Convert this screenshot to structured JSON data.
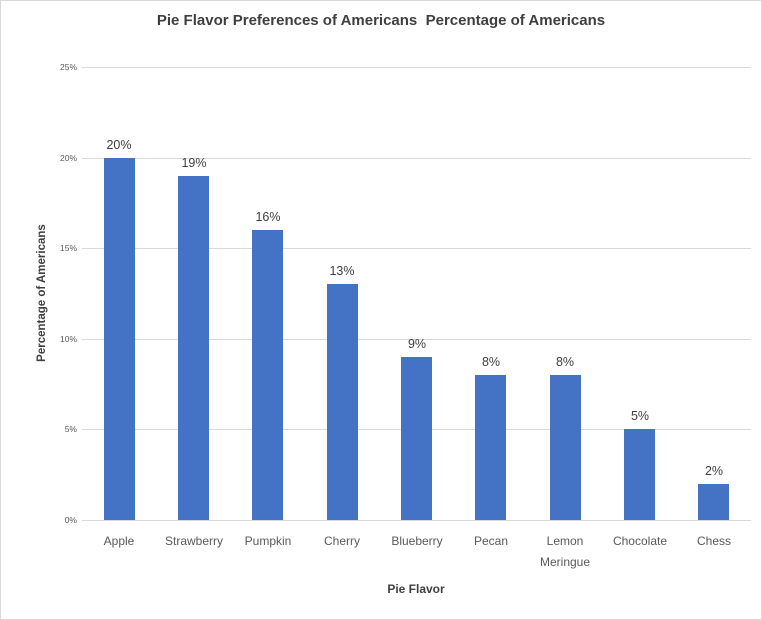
{
  "chart_data": {
    "type": "bar",
    "title": "Pie Flavor Preferences of Americans  Percentage of Americans",
    "xlabel": "Pie Flavor",
    "ylabel": "Percentage of Americans",
    "categories": [
      "Apple",
      "Strawberry",
      "Pumpkin",
      "Cherry",
      "Blueberry",
      "Pecan",
      "Lemon Meringue",
      "Chocolate",
      "Chess"
    ],
    "values": [
      20,
      19,
      16,
      13,
      9,
      8,
      8,
      5,
      2
    ],
    "data_labels": [
      "20%",
      "19%",
      "16%",
      "13%",
      "9%",
      "8%",
      "8%",
      "5%",
      "2%"
    ],
    "yticks": [
      "0%",
      "5%",
      "10%",
      "15%",
      "20%",
      "25%"
    ],
    "ylim": [
      0,
      25
    ],
    "grid": true,
    "gridlines": "horizontal",
    "legend": "none",
    "colors": {
      "bar": "#4472C4",
      "gridline": "#D9D9D9",
      "title_text": "#3F3F3F",
      "axis_title_text": "#404040",
      "tick_text": "#595959",
      "data_label_text": "#404040",
      "border": "#D9D9D9",
      "background": "#FFFFFF"
    }
  }
}
